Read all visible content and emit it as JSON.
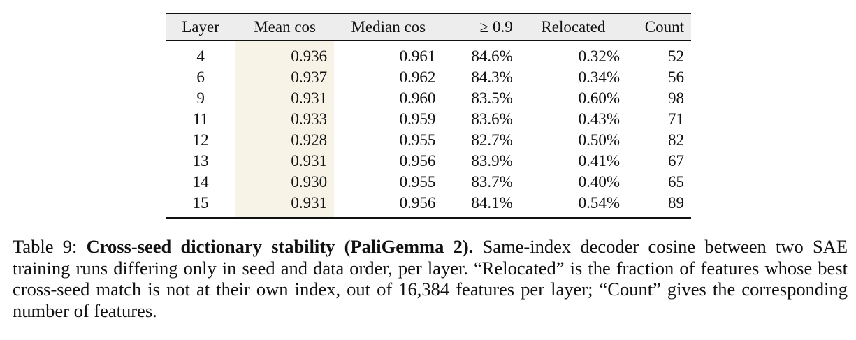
{
  "table": {
    "columns": [
      {
        "key": "layer",
        "label": "Layer"
      },
      {
        "key": "mean_cos",
        "label": "Mean cos"
      },
      {
        "key": "median_cos",
        "label": "Median cos"
      },
      {
        "key": "ge_09",
        "label": "≥ 0.9"
      },
      {
        "key": "relocated",
        "label": "Relocated"
      },
      {
        "key": "count",
        "label": "Count"
      }
    ],
    "rows": [
      {
        "layer": "4",
        "mean_cos": "0.936",
        "median_cos": "0.961",
        "ge_09": "84.6%",
        "relocated": "0.32%",
        "count": "52"
      },
      {
        "layer": "6",
        "mean_cos": "0.937",
        "median_cos": "0.962",
        "ge_09": "84.3%",
        "relocated": "0.34%",
        "count": "56"
      },
      {
        "layer": "9",
        "mean_cos": "0.931",
        "median_cos": "0.960",
        "ge_09": "83.5%",
        "relocated": "0.60%",
        "count": "98"
      },
      {
        "layer": "11",
        "mean_cos": "0.933",
        "median_cos": "0.959",
        "ge_09": "83.6%",
        "relocated": "0.43%",
        "count": "71"
      },
      {
        "layer": "12",
        "mean_cos": "0.928",
        "median_cos": "0.955",
        "ge_09": "82.7%",
        "relocated": "0.50%",
        "count": "82"
      },
      {
        "layer": "13",
        "mean_cos": "0.931",
        "median_cos": "0.956",
        "ge_09": "83.9%",
        "relocated": "0.41%",
        "count": "67"
      },
      {
        "layer": "14",
        "mean_cos": "0.930",
        "median_cos": "0.955",
        "ge_09": "83.7%",
        "relocated": "0.40%",
        "count": "65"
      },
      {
        "layer": "15",
        "mean_cos": "0.931",
        "median_cos": "0.956",
        "ge_09": "84.1%",
        "relocated": "0.54%",
        "count": "89"
      }
    ],
    "highlight_color": "#f7f4e7",
    "header_color": "#ededed"
  },
  "caption": {
    "label": "Table 9:",
    "title": "Cross-seed dictionary stability (PaliGemma 2).",
    "text": "Same-index decoder cosine between two SAE training runs differing only in seed and data order, per layer. “Relocated” is the fraction of features whose best cross-seed match is not at their own index, out of 16,384 features per layer; “Count” gives the corresponding number of features."
  }
}
